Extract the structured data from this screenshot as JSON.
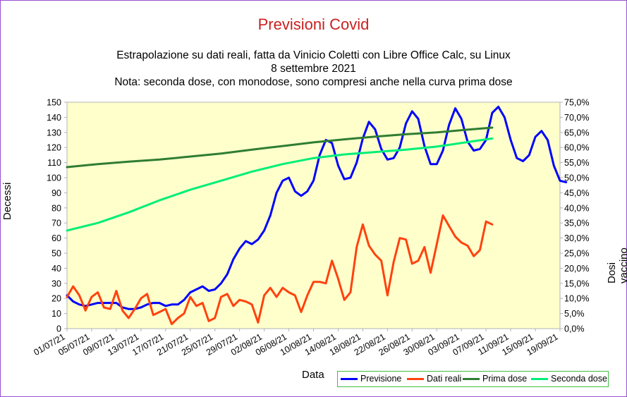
{
  "chart_data": {
    "type": "line",
    "title": "Previsioni Covid",
    "subtitle_lines": [
      "Estrapolazione su dati reali, fatta da Vinicio Coletti con Libre Office Calc, su Linux",
      "8 settembre 2021",
      "Nota: seconda dose, con monodose, sono compresi anche nella curva prima dose"
    ],
    "xlabel": "Data",
    "ylabel_left": "Decessi",
    "ylabel_right": "Dosi vaccino su abitanti",
    "ylim_left": [
      0,
      150
    ],
    "ylim_right": [
      0,
      75
    ],
    "yticks_left": [
      "0",
      "10",
      "20",
      "30",
      "40",
      "50",
      "60",
      "70",
      "80",
      "90",
      "100",
      "110",
      "120",
      "130",
      "140",
      "150"
    ],
    "yticks_right": [
      "0,0%",
      "5,0%",
      "10,0%",
      "15,0%",
      "20,0%",
      "25,0%",
      "30,0%",
      "35,0%",
      "40,0%",
      "45,0%",
      "50,0%",
      "55,0%",
      "60,0%",
      "65,0%",
      "70,0%",
      "75,0%"
    ],
    "xticks": [
      "01/07/21",
      "05/07/21",
      "09/07/21",
      "13/07/21",
      "17/07/21",
      "21/07/21",
      "25/07/21",
      "29/07/21",
      "02/08/21",
      "06/08/21",
      "10/08/21",
      "14/08/21",
      "18/08/21",
      "22/08/21",
      "26/08/21",
      "30/08/21",
      "03/09/21",
      "07/09/21",
      "11/09/21",
      "15/09/21",
      "19/09/21"
    ],
    "grid": false,
    "legend_position": "bottom-right",
    "series": [
      {
        "name": "Previsione",
        "axis": "left",
        "color": "#0000ff",
        "x": [
          "01/07/21",
          "02/07/21",
          "03/07/21",
          "04/07/21",
          "05/07/21",
          "06/07/21",
          "07/07/21",
          "08/07/21",
          "09/07/21",
          "10/07/21",
          "11/07/21",
          "12/07/21",
          "13/07/21",
          "14/07/21",
          "15/07/21",
          "16/07/21",
          "17/07/21",
          "18/07/21",
          "19/07/21",
          "20/07/21",
          "21/07/21",
          "22/07/21",
          "23/07/21",
          "24/07/21",
          "25/07/21",
          "26/07/21",
          "27/07/21",
          "28/07/21",
          "29/07/21",
          "30/07/21",
          "31/07/21",
          "01/08/21",
          "02/08/21",
          "03/08/21",
          "04/08/21",
          "05/08/21",
          "06/08/21",
          "07/08/21",
          "08/08/21",
          "09/08/21",
          "10/08/21",
          "11/08/21",
          "12/08/21",
          "13/08/21",
          "14/08/21",
          "15/08/21",
          "16/08/21",
          "17/08/21",
          "18/08/21",
          "19/08/21",
          "20/08/21",
          "21/08/21",
          "22/08/21",
          "23/08/21",
          "24/08/21",
          "25/08/21",
          "26/08/21",
          "27/08/21",
          "28/08/21",
          "29/08/21",
          "30/08/21",
          "31/08/21",
          "01/09/21",
          "02/09/21",
          "03/09/21",
          "04/09/21",
          "05/09/21",
          "06/09/21",
          "07/09/21",
          "08/09/21",
          "09/09/21",
          "10/09/21",
          "11/09/21",
          "12/09/21",
          "13/09/21",
          "14/09/21",
          "15/09/21",
          "16/09/21",
          "17/09/21",
          "18/09/21",
          "19/09/21",
          "20/09/21"
        ],
        "values": [
          22,
          18,
          16,
          15,
          16,
          17,
          17,
          17,
          17,
          14,
          13,
          13,
          14,
          16,
          17,
          17,
          15,
          16,
          16,
          19,
          24,
          26,
          28,
          25,
          26,
          30,
          36,
          46,
          53,
          58,
          56,
          59,
          65,
          75,
          90,
          98,
          100,
          91,
          88,
          91,
          98,
          115,
          125,
          123,
          108,
          99,
          100,
          110,
          126,
          137,
          132,
          119,
          112,
          113,
          120,
          136,
          144,
          139,
          121,
          109,
          109,
          118,
          135,
          146,
          139,
          124,
          118,
          119,
          125,
          143,
          147,
          140,
          125,
          113,
          111,
          115,
          127,
          131,
          125,
          108,
          98,
          97
        ]
      },
      {
        "name": "Dati reali",
        "axis": "left",
        "color": "#ff420e",
        "x": [
          "01/07/21",
          "02/07/21",
          "03/07/21",
          "04/07/21",
          "05/07/21",
          "06/07/21",
          "07/07/21",
          "08/07/21",
          "09/07/21",
          "10/07/21",
          "11/07/21",
          "12/07/21",
          "13/07/21",
          "14/07/21",
          "15/07/21",
          "16/07/21",
          "17/07/21",
          "18/07/21",
          "19/07/21",
          "20/07/21",
          "21/07/21",
          "22/07/21",
          "23/07/21",
          "24/07/21",
          "25/07/21",
          "26/07/21",
          "27/07/21",
          "28/07/21",
          "29/07/21",
          "30/07/21",
          "31/07/21",
          "01/08/21",
          "02/08/21",
          "03/08/21",
          "04/08/21",
          "05/08/21",
          "06/08/21",
          "07/08/21",
          "08/08/21",
          "09/08/21",
          "10/08/21",
          "11/08/21",
          "12/08/21",
          "13/08/21",
          "14/08/21",
          "15/08/21",
          "16/08/21",
          "17/08/21",
          "18/08/21",
          "19/08/21",
          "20/08/21",
          "21/08/21",
          "22/08/21",
          "23/08/21",
          "24/08/21",
          "25/08/21",
          "26/08/21",
          "27/08/21",
          "28/08/21",
          "29/08/21",
          "30/08/21",
          "31/08/21",
          "01/09/21",
          "02/09/21",
          "03/09/21",
          "04/09/21",
          "05/09/21",
          "06/09/21",
          "07/09/21",
          "08/09/21"
        ],
        "values": [
          21,
          28,
          22,
          12,
          21,
          24,
          14,
          13,
          25,
          12,
          7,
          13,
          20,
          23,
          9,
          11,
          13,
          3,
          7,
          10,
          21,
          15,
          17,
          5,
          7,
          21,
          23,
          15,
          19,
          18,
          16,
          4,
          22,
          27,
          21,
          27,
          24,
          22,
          11,
          22,
          31,
          31,
          30,
          45,
          33,
          19,
          24,
          54,
          69,
          55,
          49,
          45,
          22,
          44,
          60,
          59,
          43,
          45,
          54,
          37,
          56,
          75,
          68,
          61,
          57,
          55,
          48,
          52,
          71,
          69
        ]
      },
      {
        "name": "Prima dose",
        "axis": "right",
        "color": "#2e7d32",
        "x": [
          "01/07/21",
          "06/07/21",
          "11/07/21",
          "16/07/21",
          "21/07/21",
          "26/07/21",
          "31/07/21",
          "05/08/21",
          "10/08/21",
          "15/08/21",
          "20/08/21",
          "25/08/21",
          "30/08/21",
          "04/09/21",
          "08/09/21"
        ],
        "values": [
          53.5,
          54.5,
          55.3,
          56.0,
          57.0,
          58.0,
          59.3,
          60.5,
          61.7,
          62.7,
          63.6,
          64.4,
          65.0,
          65.9,
          66.6
        ]
      },
      {
        "name": "Seconda dose",
        "axis": "right",
        "color": "#00ee77",
        "x": [
          "01/07/21",
          "06/07/21",
          "11/07/21",
          "16/07/21",
          "21/07/21",
          "26/07/21",
          "31/07/21",
          "05/08/21",
          "10/08/21",
          "15/08/21",
          "20/08/21",
          "25/08/21",
          "30/08/21",
          "04/09/21",
          "08/09/21"
        ],
        "values": [
          32.5,
          35.0,
          38.5,
          42.5,
          46.0,
          49.0,
          52.0,
          54.5,
          56.5,
          57.7,
          58.5,
          59.3,
          60.3,
          61.8,
          63.0
        ]
      }
    ]
  }
}
